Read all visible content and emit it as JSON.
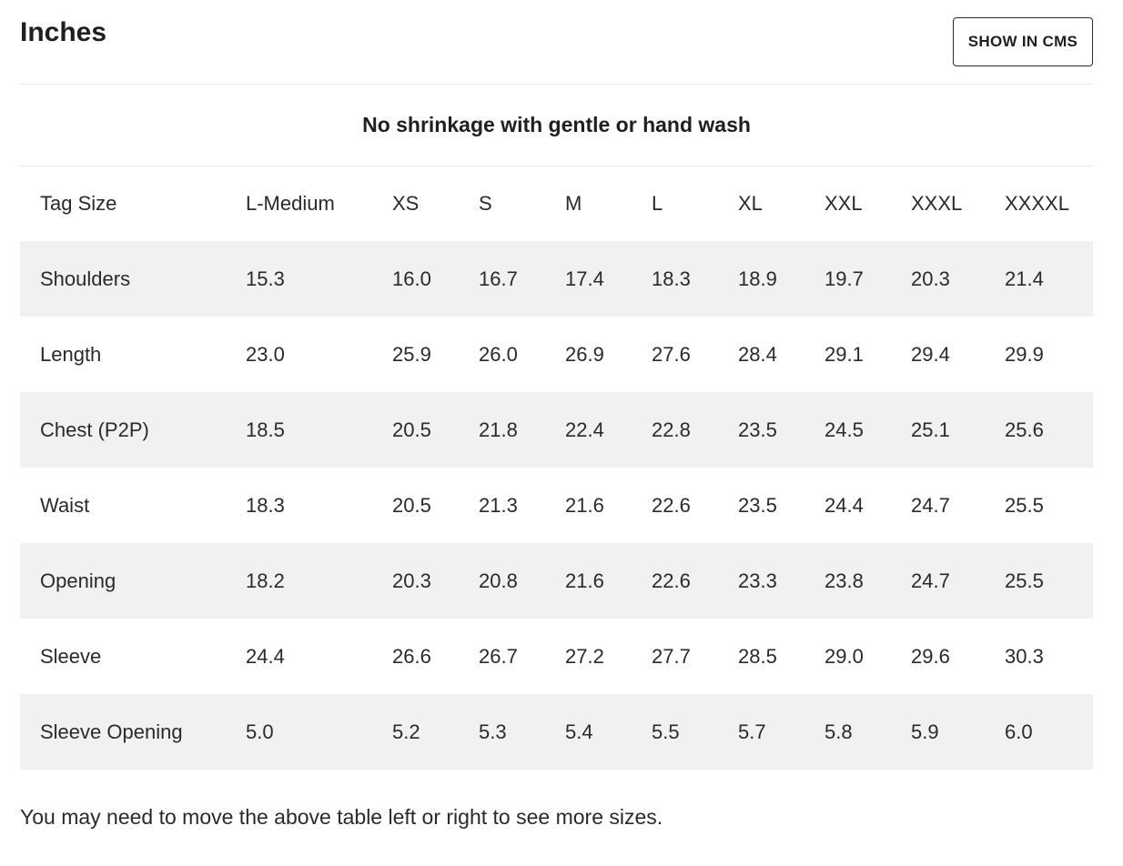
{
  "header": {
    "title": "Inches",
    "cms_button_label": "SHOW IN CMS"
  },
  "note": "No shrinkage with gentle or hand wash",
  "table": {
    "columns": [
      "Tag Size",
      "L-Medium",
      "XS",
      "S",
      "M",
      "L",
      "XL",
      "XXL",
      "XXXL",
      "XXXXL"
    ],
    "rows": [
      [
        "Shoulders",
        "15.3",
        "16.0",
        "16.7",
        "17.4",
        "18.3",
        "18.9",
        "19.7",
        "20.3",
        "21.4"
      ],
      [
        "Length",
        "23.0",
        "25.9",
        "26.0",
        "26.9",
        "27.6",
        "28.4",
        "29.1",
        "29.4",
        "29.9"
      ],
      [
        "Chest (P2P)",
        "18.5",
        "20.5",
        "21.8",
        "22.4",
        "22.8",
        "23.5",
        "24.5",
        "25.1",
        "25.6"
      ],
      [
        "Waist",
        "18.3",
        "20.5",
        "21.3",
        "21.6",
        "22.6",
        "23.5",
        "24.4",
        "24.7",
        "25.5"
      ],
      [
        "Opening",
        "18.2",
        "20.3",
        "20.8",
        "21.6",
        "22.6",
        "23.3",
        "23.8",
        "24.7",
        "25.5"
      ],
      [
        "Sleeve",
        "24.4",
        "26.6",
        "26.7",
        "27.2",
        "27.7",
        "28.5",
        "29.0",
        "29.6",
        "30.3"
      ],
      [
        "Sleeve Opening",
        "5.0",
        "5.2",
        "5.3",
        "5.4",
        "5.5",
        "5.7",
        "5.8",
        "5.9",
        "6.0"
      ]
    ]
  },
  "footer_note": "You may need to move the above table left or right to see more sizes.",
  "colors": {
    "stripe": "#f1f1f1",
    "divider": "#e6e6e6",
    "text": "#1f1f1f"
  }
}
